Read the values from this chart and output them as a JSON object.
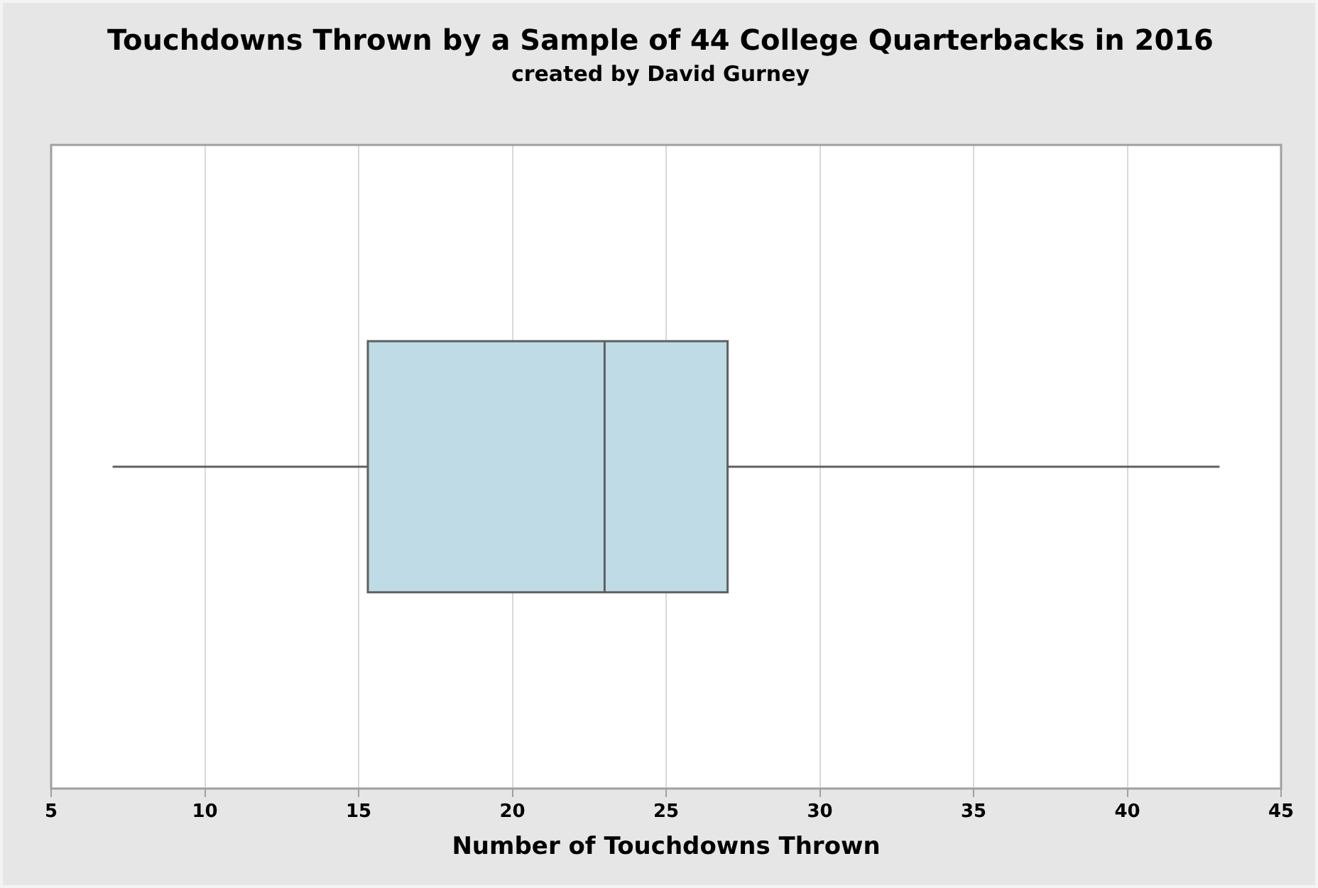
{
  "chart_data": {
    "type": "box",
    "title": "Touchdowns Thrown by a Sample of 44 College Quarterbacks in 2016",
    "subtitle": "created by David Gurney",
    "xlabel": "Number of Touchdowns Thrown",
    "orientation": "horizontal",
    "categories": [
      null
    ],
    "color": "#bedbe6",
    "boxes": [
      {
        "low": 7,
        "q1": 15.3,
        "median": 23,
        "q3": 27,
        "high": 43
      }
    ],
    "xlim": [
      5,
      45
    ],
    "xticks": [
      5,
      10,
      15,
      20,
      25,
      30,
      35,
      40,
      45
    ],
    "grid": "x",
    "tick_labels": "x",
    "legend": false
  }
}
